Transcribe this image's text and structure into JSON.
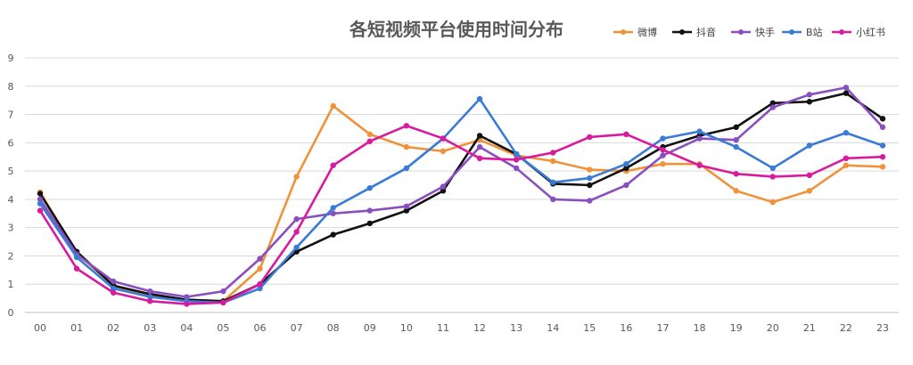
{
  "chart_data": {
    "type": "line",
    "title": "各短视频平台使用时间分布",
    "xlabel": "",
    "ylabel": "",
    "categories": [
      "00",
      "01",
      "02",
      "03",
      "04",
      "05",
      "06",
      "07",
      "08",
      "09",
      "10",
      "11",
      "12",
      "13",
      "14",
      "15",
      "16",
      "17",
      "18",
      "19",
      "20",
      "21",
      "22",
      "23"
    ],
    "ylim": [
      0,
      9
    ],
    "yticks": [
      0,
      1,
      2,
      3,
      4,
      5,
      6,
      7,
      8,
      9
    ],
    "grid": true,
    "legend_position": "top-right",
    "series": [
      {
        "name": "微博",
        "color": "#F0923A",
        "values": [
          4.25,
          2.1,
          0.95,
          0.6,
          0.45,
          0.4,
          1.55,
          4.8,
          7.3,
          6.3,
          5.85,
          5.7,
          6.1,
          5.55,
          5.35,
          5.05,
          5.0,
          5.25,
          5.25,
          4.3,
          3.9,
          4.3,
          5.2,
          5.15
        ]
      },
      {
        "name": "抖音",
        "color": "#111111",
        "values": [
          4.2,
          2.15,
          0.95,
          0.65,
          0.45,
          0.4,
          1.0,
          2.15,
          2.75,
          3.15,
          3.6,
          4.3,
          6.25,
          5.6,
          4.55,
          4.5,
          5.1,
          5.85,
          6.25,
          6.55,
          7.4,
          7.45,
          7.75,
          6.85
        ]
      },
      {
        "name": "快手",
        "color": "#8A4FBF",
        "values": [
          4.0,
          2.05,
          1.1,
          0.75,
          0.55,
          0.75,
          1.9,
          3.3,
          3.5,
          3.6,
          3.75,
          4.45,
          5.85,
          5.1,
          4.0,
          3.95,
          4.5,
          5.55,
          6.15,
          6.1,
          7.25,
          7.7,
          7.95,
          6.55
        ]
      },
      {
        "name": "B站",
        "color": "#3A7BD5",
        "values": [
          3.85,
          1.95,
          0.85,
          0.55,
          0.4,
          0.35,
          0.85,
          2.3,
          3.7,
          4.4,
          5.1,
          6.15,
          7.55,
          5.6,
          4.6,
          4.75,
          5.25,
          6.15,
          6.4,
          5.85,
          5.1,
          5.9,
          6.35,
          5.9
        ]
      },
      {
        "name": "小红书",
        "color": "#D81B9E",
        "values": [
          3.6,
          1.55,
          0.7,
          0.4,
          0.3,
          0.35,
          1.0,
          2.85,
          5.2,
          6.05,
          6.6,
          6.15,
          5.45,
          5.4,
          5.65,
          6.2,
          6.3,
          5.75,
          5.2,
          4.9,
          4.8,
          4.85,
          5.45,
          5.5
        ]
      }
    ]
  }
}
